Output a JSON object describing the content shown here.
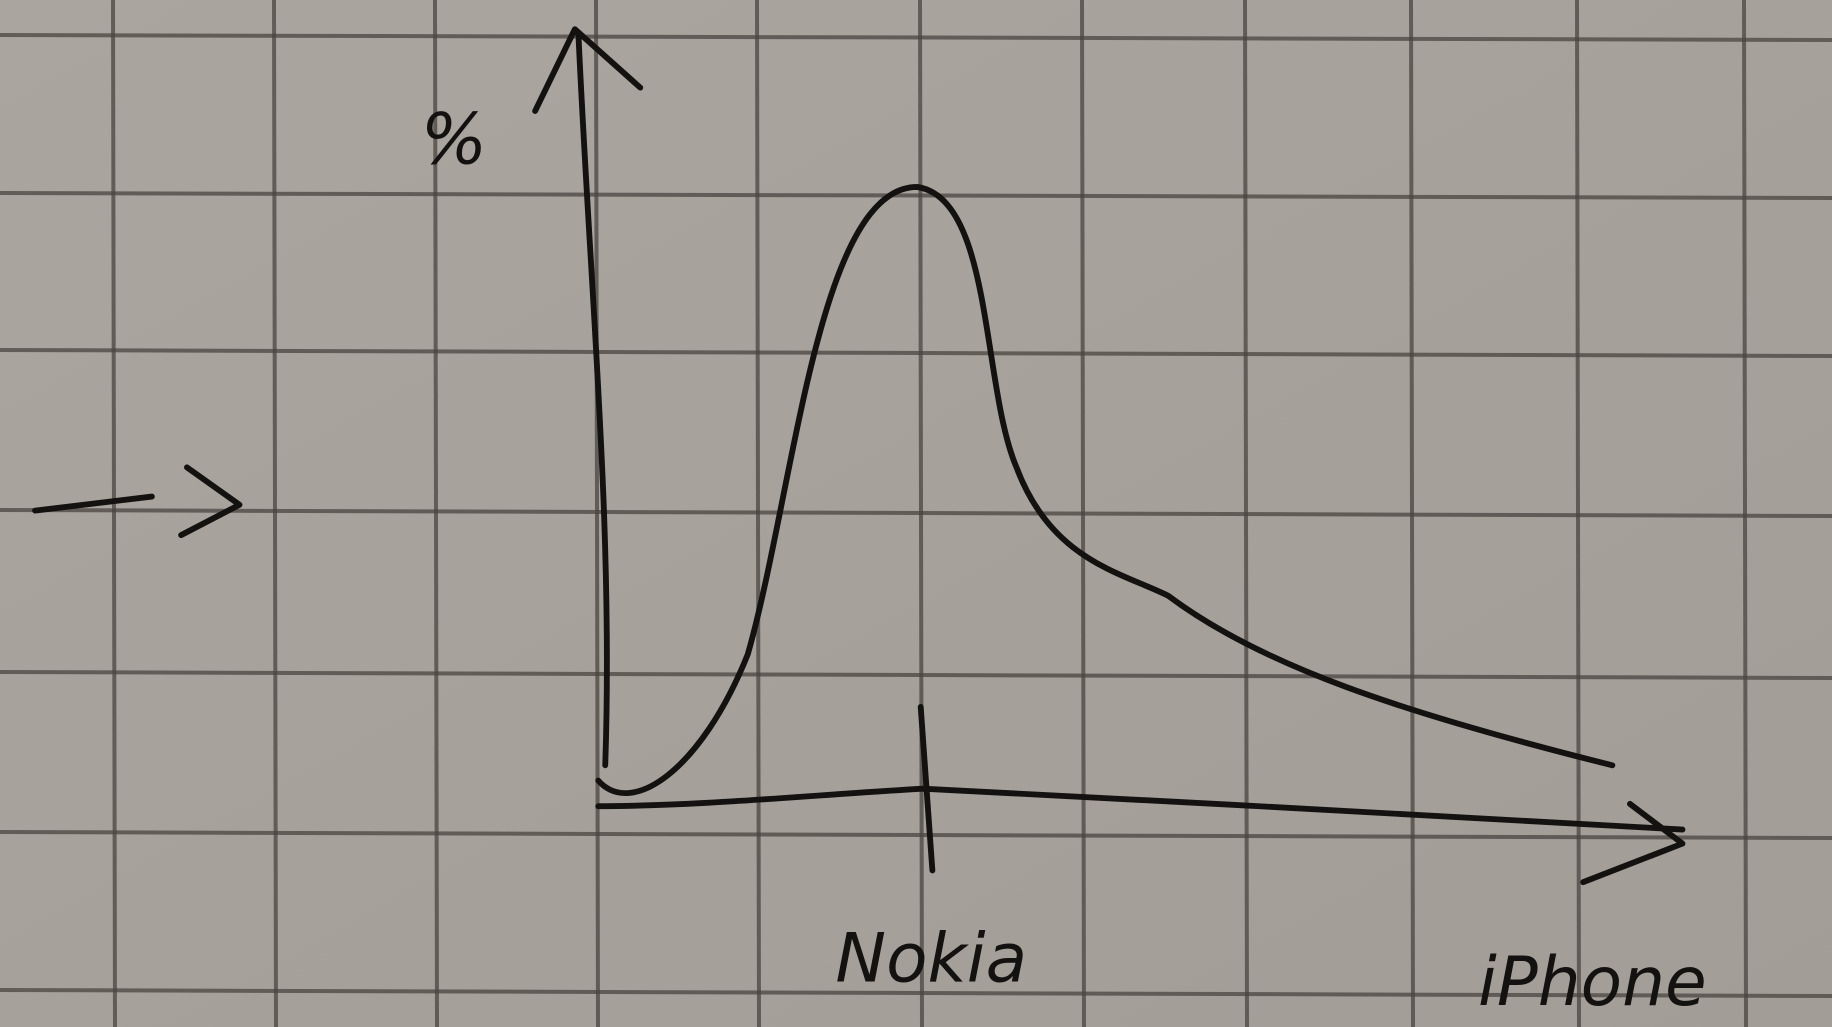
{
  "axes": {
    "y_label": "%",
    "x_labels": [
      "Nokia",
      "iPhone"
    ]
  }
}
